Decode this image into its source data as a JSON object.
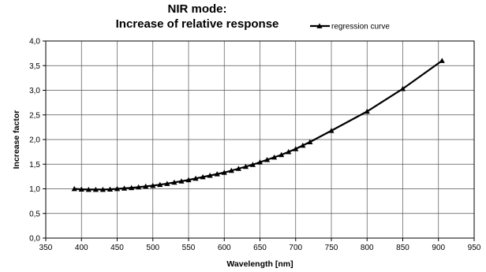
{
  "chart_data": {
    "type": "line",
    "title_line1": "NIR mode:",
    "title_line2": "Increase of relative response",
    "xlabel": "Wavelength [nm]",
    "ylabel": "Increase factor",
    "xlim": [
      350,
      950
    ],
    "ylim": [
      0,
      4
    ],
    "x_ticks": [
      "350",
      "400",
      "450",
      "500",
      "550",
      "600",
      "650",
      "700",
      "750",
      "800",
      "850",
      "900",
      "950"
    ],
    "y_ticks": [
      "0,0",
      "0,5",
      "1,0",
      "1,5",
      "2,0",
      "2,5",
      "3,0",
      "3,5",
      "4,0"
    ],
    "grid": true,
    "legend_position": "top-right",
    "series": [
      {
        "name": "regression curve",
        "color": "#000000",
        "marker": "triangle",
        "x": [
          390,
          400,
          410,
          420,
          430,
          440,
          450,
          460,
          470,
          480,
          490,
          500,
          510,
          520,
          530,
          540,
          550,
          560,
          570,
          580,
          590,
          600,
          610,
          620,
          630,
          640,
          650,
          660,
          670,
          680,
          690,
          700,
          710,
          720,
          750,
          800,
          850,
          905
        ],
        "y": [
          1.0,
          0.99,
          0.985,
          0.985,
          0.985,
          0.99,
          1.0,
          1.01,
          1.02,
          1.035,
          1.05,
          1.065,
          1.085,
          1.105,
          1.13,
          1.155,
          1.18,
          1.21,
          1.24,
          1.27,
          1.3,
          1.33,
          1.37,
          1.41,
          1.45,
          1.49,
          1.54,
          1.59,
          1.64,
          1.69,
          1.75,
          1.81,
          1.88,
          1.95,
          2.18,
          2.57,
          3.03,
          3.6
        ]
      }
    ]
  }
}
